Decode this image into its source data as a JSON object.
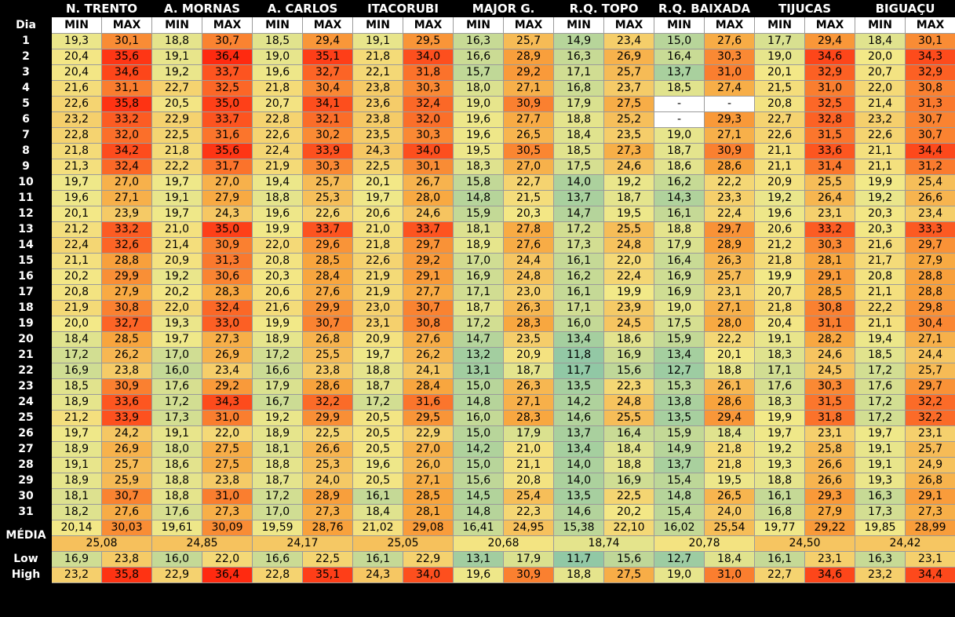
{
  "header": {
    "dia_label": "Dia",
    "stations": [
      "N. TRENTO",
      "A. MORNAS",
      "A. CARLOS",
      "ITACORUBI",
      "MAJOR G.",
      "R.Q. TOPO",
      "R.Q. BAIXADA",
      "TIJUCAS",
      "BIGUAÇU"
    ],
    "min_label": "MIN",
    "max_label": "MAX"
  },
  "days": [
    {
      "dia": "1",
      "values": [
        "19,3",
        "30,1",
        "18,8",
        "30,7",
        "18,5",
        "29,4",
        "19,1",
        "29,5",
        "16,3",
        "25,7",
        "14,9",
        "23,4",
        "15,0",
        "27,6",
        "17,7",
        "29,4",
        "18,4",
        "30,1"
      ]
    },
    {
      "dia": "2",
      "values": [
        "20,4",
        "35,6",
        "19,1",
        "36,4",
        "19,0",
        "35,1",
        "21,8",
        "34,0",
        "16,6",
        "28,9",
        "16,3",
        "26,9",
        "16,4",
        "30,3",
        "19,0",
        "34,6",
        "20,0",
        "34,3"
      ]
    },
    {
      "dia": "3",
      "values": [
        "20,4",
        "34,6",
        "19,2",
        "33,7",
        "19,6",
        "32,7",
        "22,1",
        "31,8",
        "15,7",
        "29,2",
        "17,1",
        "25,7",
        "13,7",
        "31,0",
        "20,1",
        "32,9",
        "20,7",
        "32,9"
      ]
    },
    {
      "dia": "4",
      "values": [
        "21,6",
        "31,1",
        "22,7",
        "32,5",
        "21,8",
        "30,4",
        "23,8",
        "30,3",
        "18,0",
        "27,1",
        "16,8",
        "23,7",
        "18,5",
        "27,4",
        "21,5",
        "31,0",
        "22,0",
        "30,8"
      ]
    },
    {
      "dia": "5",
      "values": [
        "22,6",
        "35,8",
        "20,5",
        "35,0",
        "20,7",
        "34,1",
        "23,6",
        "32,4",
        "19,0",
        "30,9",
        "17,9",
        "27,5",
        "-",
        "-",
        "20,8",
        "32,5",
        "21,4",
        "31,3"
      ]
    },
    {
      "dia": "6",
      "values": [
        "23,2",
        "33,2",
        "22,9",
        "33,7",
        "22,8",
        "32,1",
        "23,8",
        "32,0",
        "19,6",
        "27,7",
        "18,8",
        "25,2",
        "-",
        "29,3",
        "22,7",
        "32,8",
        "23,2",
        "30,7"
      ]
    },
    {
      "dia": "7",
      "values": [
        "22,8",
        "32,0",
        "22,5",
        "31,6",
        "22,6",
        "30,2",
        "23,5",
        "30,3",
        "19,6",
        "26,5",
        "18,4",
        "23,5",
        "19,0",
        "27,1",
        "22,6",
        "31,5",
        "22,6",
        "30,7"
      ]
    },
    {
      "dia": "8",
      "values": [
        "21,8",
        "34,2",
        "21,8",
        "35,6",
        "22,4",
        "33,9",
        "24,3",
        "34,0",
        "19,5",
        "30,5",
        "18,5",
        "27,3",
        "18,7",
        "30,9",
        "21,1",
        "33,6",
        "21,1",
        "34,4"
      ]
    },
    {
      "dia": "9",
      "values": [
        "21,3",
        "32,4",
        "22,2",
        "31,7",
        "21,9",
        "30,3",
        "22,5",
        "30,1",
        "18,3",
        "27,0",
        "17,5",
        "24,6",
        "18,6",
        "28,6",
        "21,1",
        "31,4",
        "21,1",
        "31,2"
      ]
    },
    {
      "dia": "10",
      "values": [
        "19,7",
        "27,0",
        "19,7",
        "27,0",
        "19,4",
        "25,7",
        "20,1",
        "26,7",
        "15,8",
        "22,7",
        "14,0",
        "19,2",
        "16,2",
        "22,2",
        "20,9",
        "25,5",
        "19,9",
        "25,4"
      ]
    },
    {
      "dia": "11",
      "values": [
        "19,6",
        "27,1",
        "19,1",
        "27,9",
        "18,8",
        "25,3",
        "19,7",
        "28,0",
        "14,8",
        "21,5",
        "13,7",
        "18,7",
        "14,3",
        "23,3",
        "19,2",
        "26,4",
        "19,2",
        "26,6"
      ]
    },
    {
      "dia": "12",
      "values": [
        "20,1",
        "23,9",
        "19,7",
        "24,3",
        "19,6",
        "22,6",
        "20,6",
        "24,6",
        "15,9",
        "20,3",
        "14,7",
        "19,5",
        "16,1",
        "22,4",
        "19,6",
        "23,1",
        "20,3",
        "23,4"
      ]
    },
    {
      "dia": "13",
      "values": [
        "21,2",
        "33,2",
        "21,0",
        "35,0",
        "19,9",
        "33,7",
        "21,0",
        "33,7",
        "18,1",
        "27,8",
        "17,2",
        "25,5",
        "18,8",
        "29,7",
        "20,6",
        "33,2",
        "20,3",
        "33,3"
      ]
    },
    {
      "dia": "14",
      "values": [
        "22,4",
        "32,6",
        "21,4",
        "30,9",
        "22,0",
        "29,6",
        "21,8",
        "29,7",
        "18,9",
        "27,6",
        "17,3",
        "24,8",
        "17,9",
        "28,9",
        "21,2",
        "30,3",
        "21,6",
        "29,7"
      ]
    },
    {
      "dia": "15",
      "values": [
        "21,1",
        "28,8",
        "20,9",
        "31,3",
        "20,8",
        "28,5",
        "22,6",
        "29,2",
        "17,0",
        "24,4",
        "16,1",
        "22,0",
        "16,4",
        "26,3",
        "21,8",
        "28,1",
        "21,7",
        "27,9"
      ]
    },
    {
      "dia": "16",
      "values": [
        "20,2",
        "29,9",
        "19,2",
        "30,6",
        "20,3",
        "28,4",
        "21,9",
        "29,1",
        "16,9",
        "24,8",
        "16,2",
        "22,4",
        "16,9",
        "25,7",
        "19,9",
        "29,1",
        "20,8",
        "28,8"
      ]
    },
    {
      "dia": "17",
      "values": [
        "20,8",
        "27,9",
        "20,2",
        "28,3",
        "20,6",
        "27,6",
        "21,9",
        "27,7",
        "17,1",
        "23,0",
        "16,1",
        "19,9",
        "16,9",
        "23,1",
        "20,7",
        "28,5",
        "21,1",
        "28,8"
      ]
    },
    {
      "dia": "18",
      "values": [
        "21,9",
        "30,8",
        "22,0",
        "32,4",
        "21,6",
        "29,9",
        "23,0",
        "30,7",
        "18,7",
        "26,3",
        "17,1",
        "23,9",
        "19,0",
        "27,1",
        "21,8",
        "30,8",
        "22,2",
        "29,8"
      ]
    },
    {
      "dia": "19",
      "values": [
        "20,0",
        "32,7",
        "19,3",
        "33,0",
        "19,9",
        "30,7",
        "23,1",
        "30,8",
        "17,2",
        "28,3",
        "16,0",
        "24,5",
        "17,5",
        "28,0",
        "20,4",
        "31,1",
        "21,1",
        "30,4"
      ]
    },
    {
      "dia": "20",
      "values": [
        "18,4",
        "28,5",
        "19,7",
        "27,3",
        "18,9",
        "26,8",
        "20,9",
        "27,6",
        "14,7",
        "23,5",
        "13,4",
        "18,6",
        "15,9",
        "22,2",
        "19,1",
        "28,2",
        "19,4",
        "27,1"
      ]
    },
    {
      "dia": "21",
      "values": [
        "17,2",
        "26,2",
        "17,0",
        "26,9",
        "17,2",
        "25,5",
        "19,7",
        "26,2",
        "13,2",
        "20,9",
        "11,8",
        "16,9",
        "13,4",
        "20,1",
        "18,3",
        "24,6",
        "18,5",
        "24,4"
      ]
    },
    {
      "dia": "22",
      "values": [
        "16,9",
        "23,8",
        "16,0",
        "23,4",
        "16,6",
        "23,8",
        "18,8",
        "24,1",
        "13,1",
        "18,7",
        "11,7",
        "15,6",
        "12,7",
        "18,8",
        "17,1",
        "24,5",
        "17,2",
        "25,7"
      ]
    },
    {
      "dia": "23",
      "values": [
        "18,5",
        "30,9",
        "17,6",
        "29,2",
        "17,9",
        "28,6",
        "18,7",
        "28,4",
        "15,0",
        "26,3",
        "13,5",
        "22,3",
        "15,3",
        "26,1",
        "17,6",
        "30,3",
        "17,6",
        "29,7"
      ]
    },
    {
      "dia": "24",
      "values": [
        "18,9",
        "33,6",
        "17,2",
        "34,3",
        "16,7",
        "32,2",
        "17,2",
        "31,6",
        "14,8",
        "27,1",
        "14,2",
        "24,8",
        "13,8",
        "28,6",
        "18,3",
        "31,5",
        "17,2",
        "32,2"
      ]
    },
    {
      "dia": "25",
      "values": [
        "21,2",
        "33,9",
        "17,3",
        "31,0",
        "19,2",
        "29,9",
        "20,5",
        "29,5",
        "16,0",
        "28,3",
        "14,6",
        "25,5",
        "13,5",
        "29,4",
        "19,9",
        "31,8",
        "17,2",
        "32,2"
      ]
    },
    {
      "dia": "26",
      "values": [
        "19,7",
        "24,2",
        "19,1",
        "22,0",
        "18,9",
        "22,5",
        "20,5",
        "22,9",
        "15,0",
        "17,9",
        "13,7",
        "16,4",
        "15,9",
        "18,4",
        "19,7",
        "23,1",
        "19,7",
        "23,1"
      ]
    },
    {
      "dia": "27",
      "values": [
        "18,9",
        "26,9",
        "18,0",
        "27,5",
        "18,1",
        "26,6",
        "20,5",
        "27,0",
        "14,2",
        "21,0",
        "13,4",
        "18,4",
        "14,9",
        "21,8",
        "19,2",
        "25,8",
        "19,1",
        "25,7"
      ]
    },
    {
      "dia": "28",
      "values": [
        "19,1",
        "25,7",
        "18,6",
        "27,5",
        "18,8",
        "25,3",
        "19,6",
        "26,0",
        "15,0",
        "21,1",
        "14,0",
        "18,8",
        "13,7",
        "21,8",
        "19,3",
        "26,6",
        "19,1",
        "24,9"
      ]
    },
    {
      "dia": "29",
      "values": [
        "18,9",
        "25,9",
        "18,8",
        "23,8",
        "18,7",
        "24,0",
        "20,5",
        "27,1",
        "15,6",
        "20,8",
        "14,0",
        "16,9",
        "15,4",
        "19,5",
        "18,8",
        "26,6",
        "19,3",
        "26,8"
      ]
    },
    {
      "dia": "30",
      "values": [
        "18,1",
        "30,7",
        "18,8",
        "31,0",
        "17,2",
        "28,9",
        "16,1",
        "28,5",
        "14,5",
        "25,4",
        "13,5",
        "22,5",
        "14,8",
        "26,5",
        "16,1",
        "29,3",
        "16,3",
        "29,1"
      ]
    },
    {
      "dia": "31",
      "values": [
        "18,2",
        "27,6",
        "17,6",
        "27,3",
        "17,0",
        "27,3",
        "18,4",
        "28,1",
        "14,8",
        "22,3",
        "14,6",
        "20,2",
        "15,4",
        "24,0",
        "16,8",
        "27,9",
        "17,3",
        "27,3"
      ]
    }
  ],
  "media": {
    "label": "MÉDIA",
    "values": [
      "20,14",
      "30,03",
      "19,61",
      "30,09",
      "19,59",
      "28,76",
      "21,02",
      "29,08",
      "16,41",
      "24,95",
      "15,38",
      "22,10",
      "16,02",
      "25,54",
      "19,77",
      "29,22",
      "19,85",
      "28,99"
    ],
    "averages": [
      "25,08",
      "24,85",
      "24,17",
      "25,05",
      "20,68",
      "18,74",
      "20,78",
      "24,50",
      "24,42"
    ]
  },
  "low": {
    "label": "Low",
    "values": [
      "16,9",
      "23,8",
      "16,0",
      "22,0",
      "16,6",
      "22,5",
      "16,1",
      "22,9",
      "13,1",
      "17,9",
      "11,7",
      "15,6",
      "12,7",
      "18,4",
      "16,1",
      "23,1",
      "16,3",
      "23,1"
    ]
  },
  "high": {
    "label": "High",
    "values": [
      "23,2",
      "35,8",
      "22,9",
      "36,4",
      "22,8",
      "35,1",
      "24,3",
      "34,0",
      "19,6",
      "30,9",
      "18,8",
      "27,5",
      "19,0",
      "31,0",
      "22,7",
      "34,6",
      "23,2",
      "34,4"
    ]
  },
  "colors": {
    "cold": "#8fc7a6",
    "mid": "#f3e988",
    "warm": "#f8a53e",
    "hot": "#ff2a10",
    "blank": "#ffffff",
    "header_bg": "#000000",
    "header_text": "#ffffff"
  }
}
